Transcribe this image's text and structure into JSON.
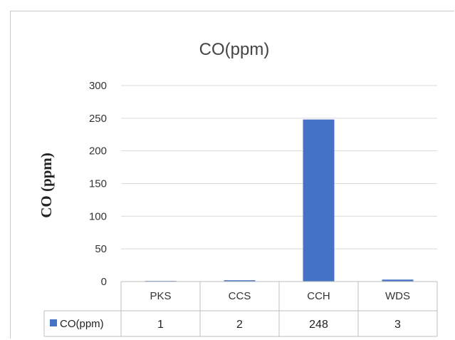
{
  "chart_data": {
    "type": "bar",
    "title": "CO(ppm)",
    "ylabel": "CO (ppm)",
    "xlabel": "",
    "categories": [
      "PKS",
      "CCS",
      "CCH",
      "WDS"
    ],
    "series": [
      {
        "name": "CO(ppm)",
        "values": [
          1,
          2,
          248,
          3
        ],
        "color": "#4472c4"
      }
    ],
    "ylim": [
      0,
      300
    ],
    "yticks": [
      0,
      50,
      100,
      150,
      200,
      250,
      300
    ],
    "grid": true,
    "legend": "data-table",
    "data_table": true
  }
}
